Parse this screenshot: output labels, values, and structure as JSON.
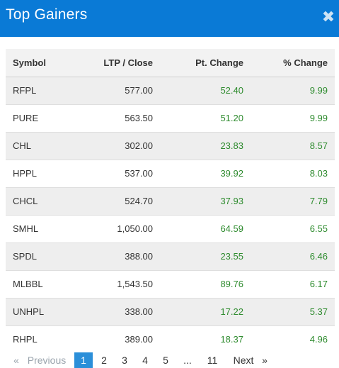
{
  "modal": {
    "title": "Top Gainers",
    "close_symbol": "✖"
  },
  "table": {
    "headers": [
      "Symbol",
      "LTP / Close",
      "Pt. Change",
      "% Change"
    ],
    "rows": [
      {
        "symbol": "RFPL",
        "ltp": "577.00",
        "pt": "52.40",
        "pct": "9.99"
      },
      {
        "symbol": "PURE",
        "ltp": "563.50",
        "pt": "51.20",
        "pct": "9.99"
      },
      {
        "symbol": "CHL",
        "ltp": "302.00",
        "pt": "23.83",
        "pct": "8.57"
      },
      {
        "symbol": "HPPL",
        "ltp": "537.00",
        "pt": "39.92",
        "pct": "8.03"
      },
      {
        "symbol": "CHCL",
        "ltp": "524.70",
        "pt": "37.93",
        "pct": "7.79"
      },
      {
        "symbol": "SMHL",
        "ltp": "1,050.00",
        "pt": "64.59",
        "pct": "6.55"
      },
      {
        "symbol": "SPDL",
        "ltp": "388.00",
        "pt": "23.55",
        "pct": "6.46"
      },
      {
        "symbol": "MLBBL",
        "ltp": "1,543.50",
        "pt": "89.76",
        "pct": "6.17"
      },
      {
        "symbol": "UNHPL",
        "ltp": "338.00",
        "pt": "17.22",
        "pct": "5.37"
      },
      {
        "symbol": "RHPL",
        "ltp": "389.00",
        "pt": "18.37",
        "pct": "4.96"
      }
    ],
    "positive_color": "#2e8b2e"
  },
  "pagination": {
    "first_arrow": "«",
    "previous": "Previous",
    "pages": [
      "1",
      "2",
      "3",
      "4",
      "5"
    ],
    "ellipsis": "...",
    "last_page": "11",
    "next": "Next",
    "last_arrow": "»",
    "current_page": "1"
  },
  "colors": {
    "header_bg": "#0a7ad6",
    "active_page_bg": "#2b8fd9"
  }
}
